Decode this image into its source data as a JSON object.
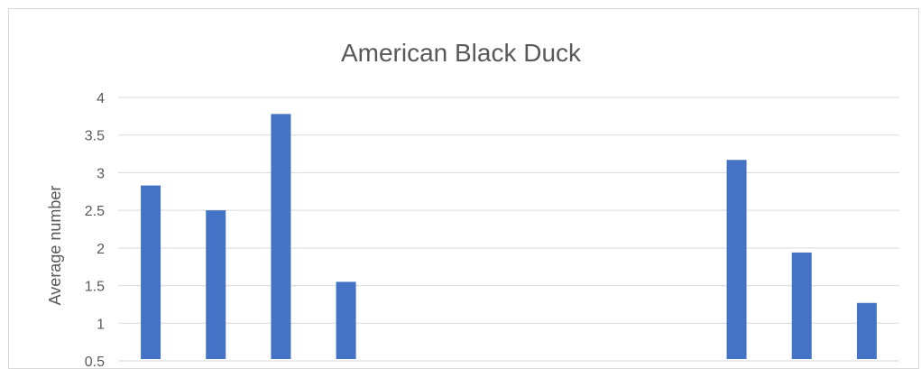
{
  "chart_data": {
    "type": "bar",
    "title": "American Black Duck",
    "xlabel": "",
    "ylabel": "Average number",
    "ylim": [
      0.5,
      4
    ],
    "yticks": [
      0.5,
      1,
      1.5,
      2,
      2.5,
      3,
      3.5,
      4
    ],
    "grid": true,
    "series_color": "#4472c4",
    "categories": [
      "",
      "",
      "",
      "",
      "",
      "",
      "",
      "",
      "",
      "",
      "",
      ""
    ],
    "values": [
      2.83,
      2.5,
      3.78,
      1.55,
      null,
      null,
      null,
      null,
      null,
      3.17,
      1.94,
      1.27
    ]
  }
}
